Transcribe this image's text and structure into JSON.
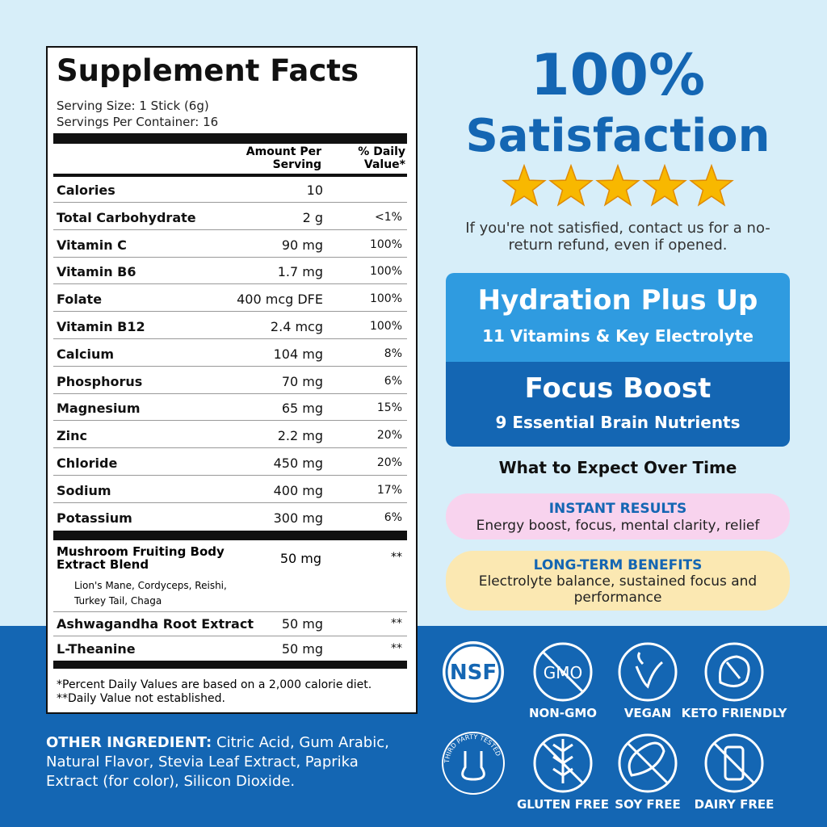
{
  "facts": {
    "title": "Supplement Facts",
    "serving_size": "Serving Size: 1 Stick (6g)",
    "servings_per_container": "Servings Per Container: 16",
    "header_amount": "Amount Per Serving",
    "header_dv": "% Daily Value*",
    "rows": [
      [
        "Calories",
        "10",
        ""
      ],
      [
        "Total Carbohydrate",
        "2 g",
        "<1%"
      ],
      [
        "Vitamin C",
        "90 mg",
        "100%"
      ],
      [
        "Vitamin B6",
        "1.7 mg",
        "100%"
      ],
      [
        "Folate",
        "400 mcg DFE",
        "100%"
      ],
      [
        "Vitamin B12",
        "2.4 mcg",
        "100%"
      ],
      [
        "Calcium",
        "104 mg",
        "8%"
      ],
      [
        "Phosphorus",
        "70 mg",
        "6%"
      ],
      [
        "Magnesium",
        "65 mg",
        "15%"
      ],
      [
        "Zinc",
        "2.2 mg",
        "20%"
      ],
      [
        "Chloride",
        "450 mg",
        "20%"
      ],
      [
        "Sodium",
        "400 mg",
        "17%"
      ],
      [
        "Potassium",
        "300 mg",
        "6%"
      ]
    ],
    "blend": {
      "name": "Mushroom Fruiting Body Extract Blend",
      "amount": "50 mg",
      "dv": "**",
      "contents": "Lion's Mane, Cordyceps, Reishi, Turkey Tail, Chaga"
    },
    "extra_rows": [
      [
        "Ashwagandha Root Extract",
        "50 mg",
        "**"
      ],
      [
        "L-Theanine",
        "50 mg",
        "**"
      ]
    ],
    "footnotes": [
      "*Percent Daily Values are based on a 2,000 calorie diet.",
      "**Daily Value not established."
    ]
  },
  "other_ingredient": {
    "label": "OTHER INGREDIENT:",
    "text": "Citric Acid, Gum Arabic, Natural Flavor, Stevia Leaf Extract, Paprika Extract (for color), Silicon Dioxide."
  },
  "satisfaction": {
    "line1": "100%",
    "line2": "Satisfaction",
    "note": "If you're not satisfied, contact us for a no-return refund, even if opened."
  },
  "hydration": {
    "title": "Hydration Plus Up",
    "subtitle": "11 Vitamins & Key Electrolyte"
  },
  "focus": {
    "title": "Focus Boost",
    "subtitle": "9 Essential Brain Nutrients"
  },
  "expect": {
    "heading": "What to Expect Over Time",
    "instant": {
      "title": "INSTANT RESULTS",
      "text": "Energy boost, focus, mental clarity, relief"
    },
    "longterm": {
      "title": "LONG-TERM BENEFITS",
      "text": "Electrolyte balance, sustained focus and performance"
    }
  },
  "badges": {
    "nsf": "NSF",
    "gmo_icon": "GMO",
    "third_party": "THIRD PARTY TESTED",
    "labels": [
      "NON-GMO",
      "VEGAN",
      "KETO FRIENDLY",
      "GLUTEN FREE",
      "SOY FREE",
      "DAIRY FREE"
    ]
  }
}
